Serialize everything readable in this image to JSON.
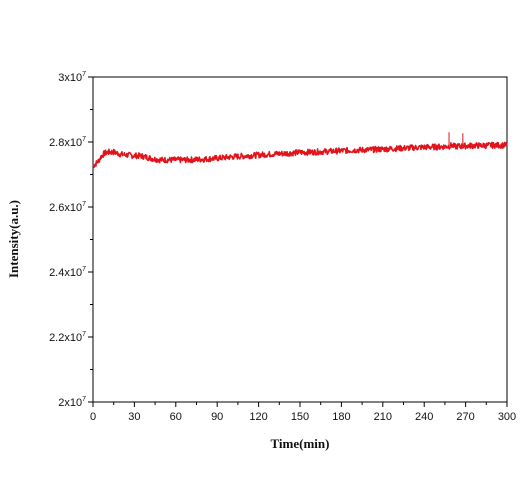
{
  "chart_data": {
    "type": "line",
    "title": "",
    "xlabel": "Time(min)",
    "ylabel": "Intensity(a.u.)",
    "xlim": [
      0,
      300
    ],
    "ylim": [
      2.0,
      3.0
    ],
    "x_ticks": [
      0,
      30,
      60,
      90,
      120,
      150,
      180,
      210,
      240,
      270,
      300
    ],
    "x_tick_labels": [
      "0",
      "30",
      "60",
      "90",
      "120",
      "150",
      "180",
      "210",
      "240",
      "270",
      "300"
    ],
    "y_ticks": [
      2.0,
      2.2,
      2.4,
      2.6,
      2.8,
      3.0
    ],
    "y_tick_labels": [
      {
        "mantissa": "2x10",
        "exp": "7"
      },
      {
        "mantissa": "2.2x10",
        "exp": "7"
      },
      {
        "mantissa": "2.4x10",
        "exp": "7"
      },
      {
        "mantissa": "2.6x10",
        "exp": "7"
      },
      {
        "mantissa": "2.8x10",
        "exp": "7"
      },
      {
        "mantissa": "3x10",
        "exp": "7"
      }
    ],
    "y_unit_note": "y values in units of 10^7",
    "grid": false,
    "series": [
      {
        "color": "#e0141b",
        "x": [
          0,
          2,
          4,
          6,
          8,
          10,
          12,
          15,
          18,
          20,
          25,
          30,
          35,
          40,
          45,
          50,
          55,
          60,
          70,
          80,
          90,
          100,
          110,
          120,
          130,
          140,
          150,
          160,
          170,
          180,
          190,
          200,
          210,
          220,
          230,
          240,
          250,
          255,
          258,
          260,
          262,
          265,
          268,
          270,
          275,
          280,
          290,
          300
        ],
        "y": [
          2.727,
          2.733,
          2.742,
          2.756,
          2.764,
          2.768,
          2.769,
          2.769,
          2.765,
          2.762,
          2.76,
          2.758,
          2.757,
          2.752,
          2.747,
          2.745,
          2.745,
          2.745,
          2.745,
          2.747,
          2.75,
          2.754,
          2.757,
          2.76,
          2.763,
          2.765,
          2.768,
          2.769,
          2.771,
          2.773,
          2.775,
          2.776,
          2.778,
          2.78,
          2.782,
          2.784,
          2.785,
          2.786,
          2.787,
          2.79,
          2.786,
          2.787,
          2.787,
          2.788,
          2.789,
          2.789,
          2.79,
          2.79
        ],
        "spikes": [
          {
            "x": 258,
            "y": 2.83
          },
          {
            "x": 268,
            "y": 2.827
          }
        ]
      }
    ]
  }
}
